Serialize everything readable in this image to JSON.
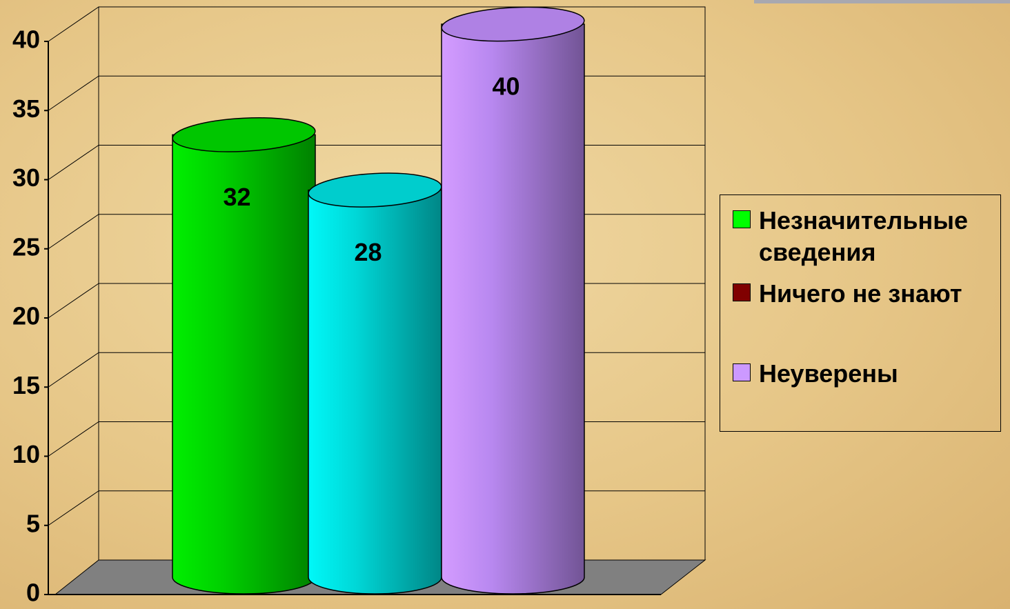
{
  "chart_data": {
    "type": "bar",
    "categories": [
      null
    ],
    "series": [
      {
        "name": "Незначительные сведения",
        "color": "#00d000",
        "legend_color": "#00ff00",
        "values": [
          32
        ]
      },
      {
        "name": "Ничего не знают",
        "color": "#00d8d8",
        "legend_color": "#800000",
        "values": [
          28
        ]
      },
      {
        "name": "Неуверены",
        "color": "#b888f0",
        "legend_color": "#cc99ff",
        "values": [
          40
        ]
      }
    ],
    "ylim": [
      0,
      40
    ],
    "yticks": [
      0,
      5,
      10,
      15,
      20,
      25,
      30,
      35,
      40
    ],
    "grid": true,
    "legend": "right"
  }
}
